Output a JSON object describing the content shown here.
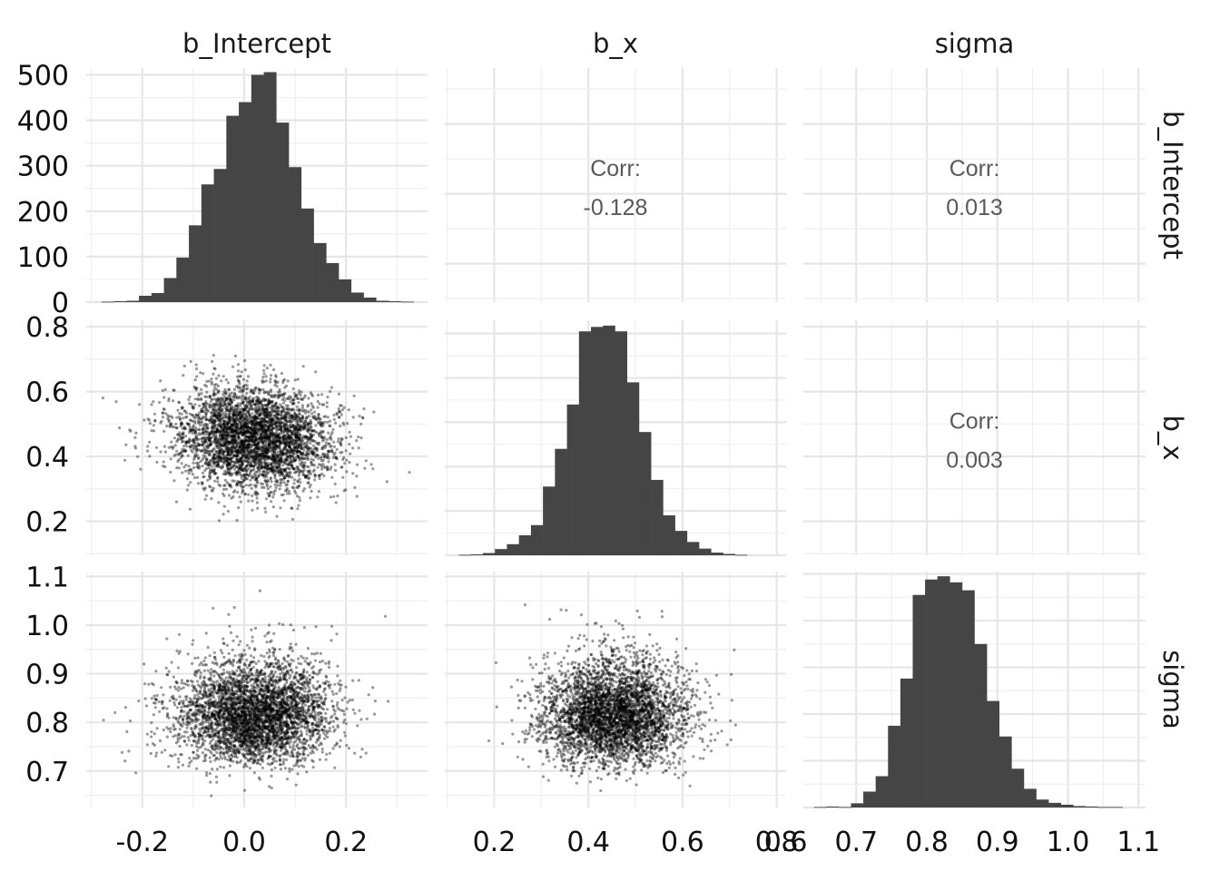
{
  "chart_data": {
    "type": "pairs",
    "variables": [
      "b_Intercept",
      "b_x",
      "sigma"
    ],
    "column_strips": [
      "b_Intercept",
      "b_x",
      "sigma"
    ],
    "row_strips": [
      "b_Intercept",
      "b_x",
      "sigma"
    ],
    "axes": {
      "b_Intercept": {
        "range": [
          -0.31,
          0.36
        ],
        "ticks": [
          -0.2,
          0.0,
          0.2
        ],
        "tick_labels": [
          "-0.2",
          "0.0",
          "0.2"
        ]
      },
      "b_x": {
        "range": [
          0.095,
          0.82
        ],
        "ticks": [
          0.2,
          0.4,
          0.6,
          0.8
        ],
        "tick_labels": [
          "0.2",
          "0.4",
          "0.6",
          "0.8"
        ]
      },
      "sigma": {
        "range": [
          0.625,
          1.11
        ],
        "ticks": [
          0.7,
          0.8,
          0.9,
          1.0,
          1.1
        ],
        "tick_labels": [
          "0.7",
          "0.8",
          "0.9",
          "1.0",
          "1.1"
        ]
      }
    },
    "x_axis_tick_labels": [
      {
        "variable": "b_Intercept",
        "labels": [
          "-0.2",
          "0.0",
          "0.2"
        ]
      },
      {
        "variable": "b_x",
        "labels": [
          "0.2",
          "0.4",
          "0.6",
          "0.8"
        ]
      },
      {
        "variable": "sigma",
        "labels": [
          "0.6",
          "0.7",
          "0.8",
          "0.9",
          "1.0",
          "1.1"
        ]
      }
    ],
    "y_axis_tick_labels": [
      {
        "variable": "b_Intercept",
        "labels": [
          "500",
          "400",
          "300",
          "200",
          "100",
          "0"
        ]
      },
      {
        "variable": "b_x",
        "labels": [
          "0.8",
          "0.6",
          "0.4",
          "0.2"
        ]
      },
      {
        "variable": "sigma",
        "labels": [
          "1.1",
          "1.0",
          "0.9",
          "0.8",
          "0.7"
        ]
      }
    ],
    "histograms": [
      {
        "variable": "b_Intercept",
        "bin_start": -0.28,
        "bin_width": 0.0245,
        "count_range": [
          0,
          515
        ],
        "counts": [
          1,
          2,
          3,
          14,
          20,
          53,
          98,
          169,
          259,
          293,
          410,
          440,
          500,
          506,
          395,
          297,
          206,
          130,
          86,
          50,
          21,
          10,
          3,
          2,
          1
        ]
      },
      {
        "variable": "b_x",
        "bin_start": 0.125,
        "bin_width": 0.0255,
        "count_range": [
          0,
          530
        ],
        "counts": [
          1,
          2,
          5,
          14,
          25,
          45,
          68,
          155,
          240,
          340,
          505,
          515,
          518,
          505,
          390,
          278,
          170,
          90,
          55,
          30,
          15,
          6,
          3,
          1
        ]
      },
      {
        "variable": "sigma",
        "bin_start": 0.64,
        "bin_width": 0.0175,
        "count_range": [
          0,
          505
        ],
        "counts": [
          1,
          2,
          1,
          9,
          34,
          67,
          175,
          276,
          455,
          488,
          495,
          482,
          465,
          350,
          228,
          152,
          83,
          40,
          17,
          10,
          6,
          3,
          2,
          1,
          1
        ]
      }
    ],
    "scatter": [
      {
        "x": "b_Intercept",
        "y": "b_x",
        "n_points": 4000,
        "x_mean": 0.02,
        "x_sd": 0.075,
        "y_mean": 0.456,
        "y_sd": 0.078,
        "correlation": -0.128
      },
      {
        "x": "b_Intercept",
        "y": "sigma",
        "n_points": 4000,
        "x_mean": 0.02,
        "x_sd": 0.075,
        "y_mean": 0.82,
        "y_sd": 0.055,
        "correlation": 0.013
      },
      {
        "x": "b_x",
        "y": "sigma",
        "n_points": 4000,
        "x_mean": 0.456,
        "x_sd": 0.078,
        "y_mean": 0.82,
        "y_sd": 0.055,
        "correlation": 0.003
      }
    ],
    "correlations": [
      {
        "row": "b_Intercept",
        "col": "b_x",
        "label": "Corr:",
        "value": "-0.128"
      },
      {
        "row": "b_Intercept",
        "col": "sigma",
        "label": "Corr:",
        "value": "0.013"
      },
      {
        "row": "b_x",
        "col": "sigma",
        "label": "Corr:",
        "value": "0.003"
      }
    ],
    "colors": {
      "bar": "#454545",
      "point": "#000000",
      "grid": "#e6e6e6",
      "corr_text": "#595959"
    },
    "grid": true
  }
}
